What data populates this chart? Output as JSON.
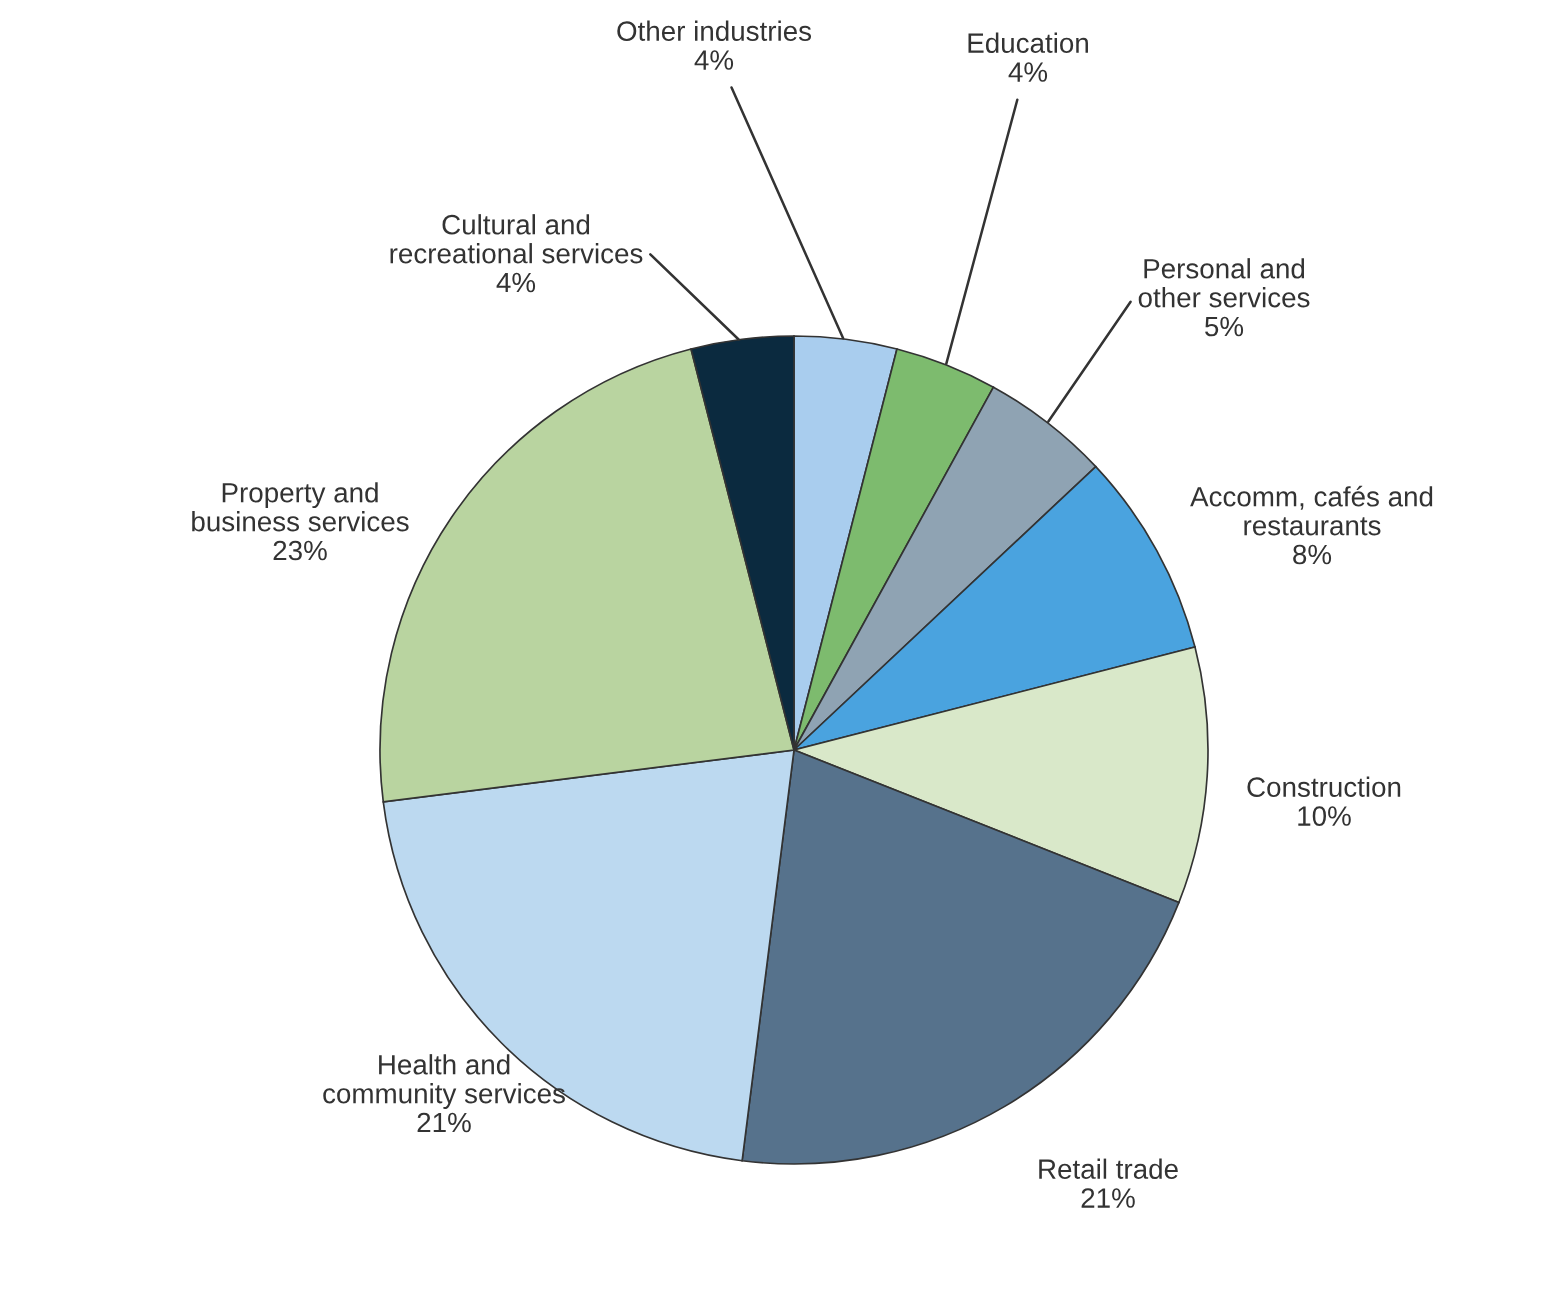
{
  "chart_data": {
    "type": "pie",
    "categories": [
      "Other industries",
      "Education",
      "Personal and other services",
      "Accomm, cafés and restaurants",
      "Construction",
      "Retail trade",
      "Health and community services",
      "Property and business services",
      "Cultural and recreational services"
    ],
    "values": [
      4,
      4,
      5,
      8,
      10,
      21,
      21,
      23,
      4
    ],
    "value_labels": [
      "4%",
      "4%",
      "5%",
      "8%",
      "10%",
      "21%",
      "21%",
      "23%",
      "4%"
    ],
    "colors": [
      "#a9cdee",
      "#7dbb6e",
      "#8fa3b3",
      "#4aa3df",
      "#d9e8c9",
      "#56728c",
      "#bcd9f0",
      "#b9d4a0",
      "#0b2a3f"
    ]
  }
}
